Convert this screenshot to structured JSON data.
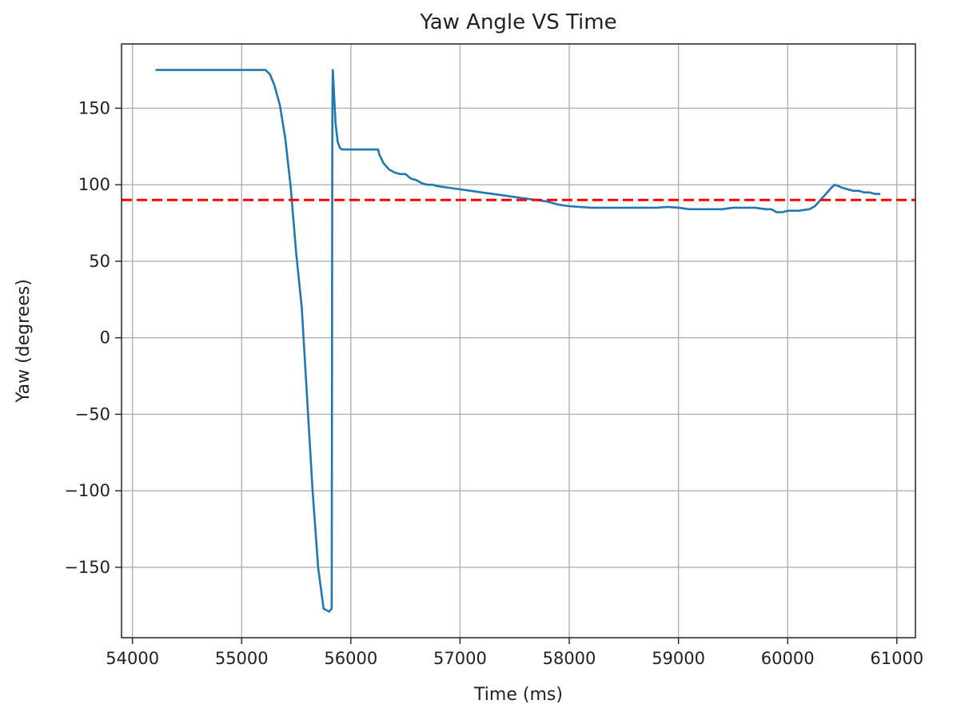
{
  "chart_data": {
    "type": "line",
    "title": "Yaw Angle VS Time",
    "xlabel": "Time (ms)",
    "ylabel": "Yaw (degrees)",
    "xlim": [
      53900,
      61170
    ],
    "ylim": [
      -196,
      192
    ],
    "xticks": [
      54000,
      55000,
      56000,
      57000,
      58000,
      59000,
      60000,
      61000
    ],
    "yticks": [
      -150,
      -100,
      -50,
      0,
      50,
      100,
      150
    ],
    "xtick_labels": [
      "54000",
      "55000",
      "56000",
      "57000",
      "58000",
      "59000",
      "60000",
      "61000"
    ],
    "ytick_labels": [
      "−150",
      "−100",
      "−50",
      "0",
      "50",
      "100",
      "150"
    ],
    "grid": true,
    "series": [
      {
        "color": "#1f77b4",
        "x": [
          54220,
          54500,
          54800,
          55100,
          55220,
          55260,
          55300,
          55350,
          55400,
          55450,
          55500,
          55550,
          55600,
          55650,
          55700,
          55750,
          55800,
          55825,
          55830,
          55832,
          55835,
          55840,
          55860,
          55880,
          55900,
          55920,
          55940,
          55960,
          55980,
          56000,
          56050,
          56100,
          56150,
          56200,
          56250,
          56260,
          56300,
          56350,
          56400,
          56450,
          56500,
          56550,
          56600,
          56650,
          56700,
          56750,
          56800,
          56900,
          57000,
          57100,
          57200,
          57300,
          57400,
          57500,
          57600,
          57700,
          57800,
          57900,
          58000,
          58200,
          58400,
          58600,
          58800,
          58900,
          59000,
          59100,
          59150,
          59200,
          59300,
          59400,
          59500,
          59600,
          59700,
          59800,
          59850,
          59900,
          59950,
          60000,
          60100,
          60200,
          60250,
          60300,
          60350,
          60400,
          60430,
          60470,
          60500,
          60550,
          60600,
          60650,
          60700,
          60750,
          60800,
          60840
        ],
        "y": [
          175,
          175,
          175,
          175,
          175,
          172,
          165,
          152,
          130,
          98,
          55,
          20,
          -40,
          -100,
          -150,
          -177,
          -179,
          -177,
          120,
          160,
          175,
          168,
          140,
          128,
          124,
          123,
          123,
          123,
          123,
          123,
          123,
          123,
          123,
          123,
          123,
          120,
          114,
          110,
          108,
          107,
          107,
          104,
          103,
          101,
          100,
          100,
          99,
          98,
          97,
          96,
          95,
          94,
          93,
          92,
          91,
          90,
          89,
          87,
          86,
          85,
          85,
          85,
          85,
          85.5,
          85,
          84,
          84,
          84,
          84,
          84,
          85,
          85,
          85,
          84,
          84,
          82,
          82,
          83,
          83,
          84,
          86,
          90,
          94,
          98,
          100,
          99,
          98,
          97,
          96,
          96,
          95,
          95,
          94,
          94
        ]
      },
      {
        "color": "#ff0000",
        "style": "dashed",
        "x": [
          53900,
          61170
        ],
        "y": [
          90,
          90
        ]
      }
    ]
  }
}
